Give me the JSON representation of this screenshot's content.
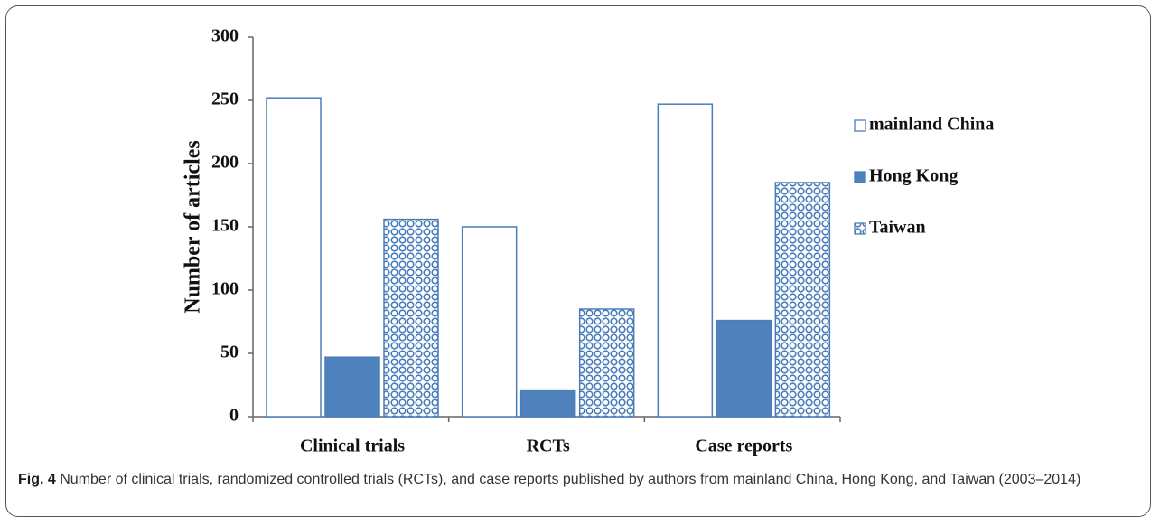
{
  "chart_data": {
    "type": "bar",
    "ylabel": "Number of articles",
    "categories": [
      "Clinical trials",
      "RCTs",
      "Case reports"
    ],
    "series": [
      {
        "name": "mainland China",
        "color": "#ffffff",
        "edgecolor": "#4a7ebb",
        "values": [
          252,
          150,
          247
        ]
      },
      {
        "name": "Hong Kong",
        "color": "#4f81bd",
        "edgecolor": "#4a7ebb",
        "values": [
          47,
          21,
          76
        ]
      },
      {
        "name": "Taiwan",
        "color": "#ffffff",
        "edgecolor": "#4a7ebb",
        "hatch": "circles",
        "values": [
          156,
          85,
          185
        ]
      }
    ],
    "ylim": [
      0,
      300
    ],
    "yticks": [
      0,
      50,
      100,
      150,
      200,
      250,
      300
    ],
    "grid": false,
    "legend": "right"
  },
  "caption": {
    "label": "Fig. 4",
    "text": "Number of clinical trials, randomized controlled trials (RCTs), and case reports published by authors from mainland China, Hong Kong, and Taiwan (2003–2014)"
  }
}
